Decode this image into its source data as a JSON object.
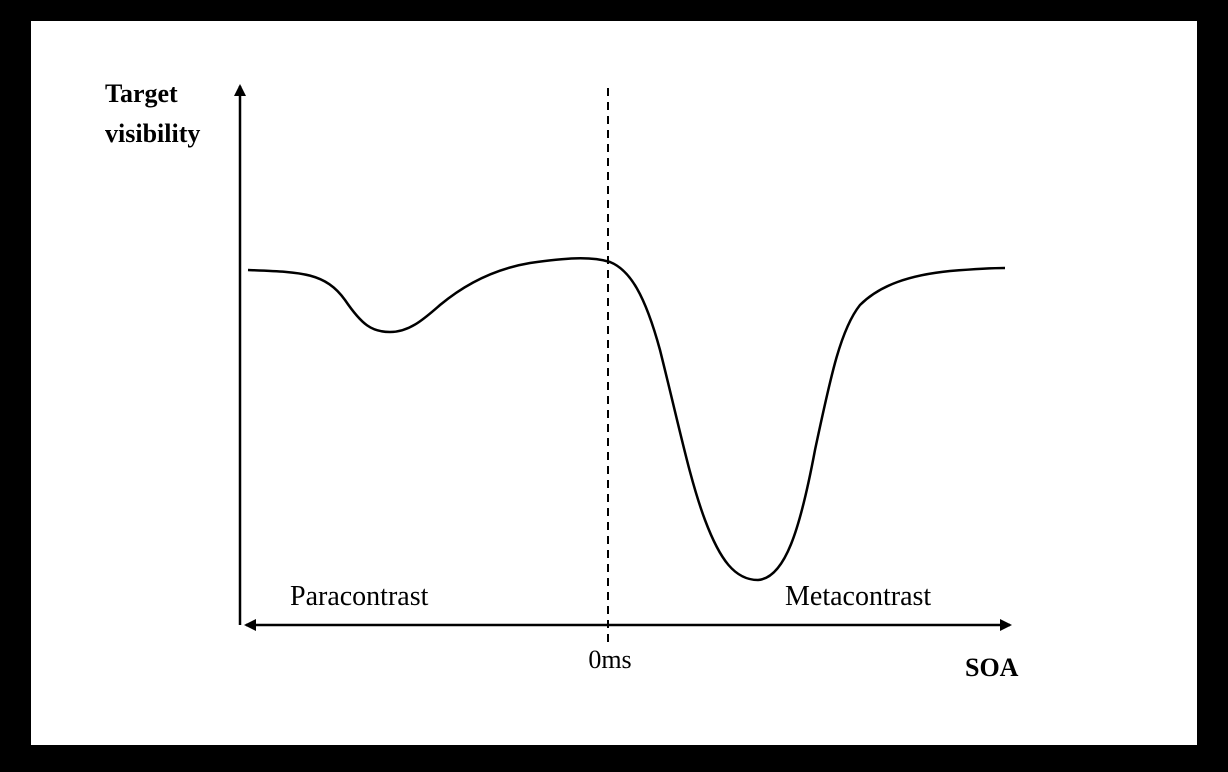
{
  "axes": {
    "y_label": [
      "Target",
      "visibility"
    ],
    "x_label": "SOA",
    "origin_label": "0ms"
  },
  "regions": {
    "left": "Paracontrast",
    "right": "Metacontrast"
  }
}
